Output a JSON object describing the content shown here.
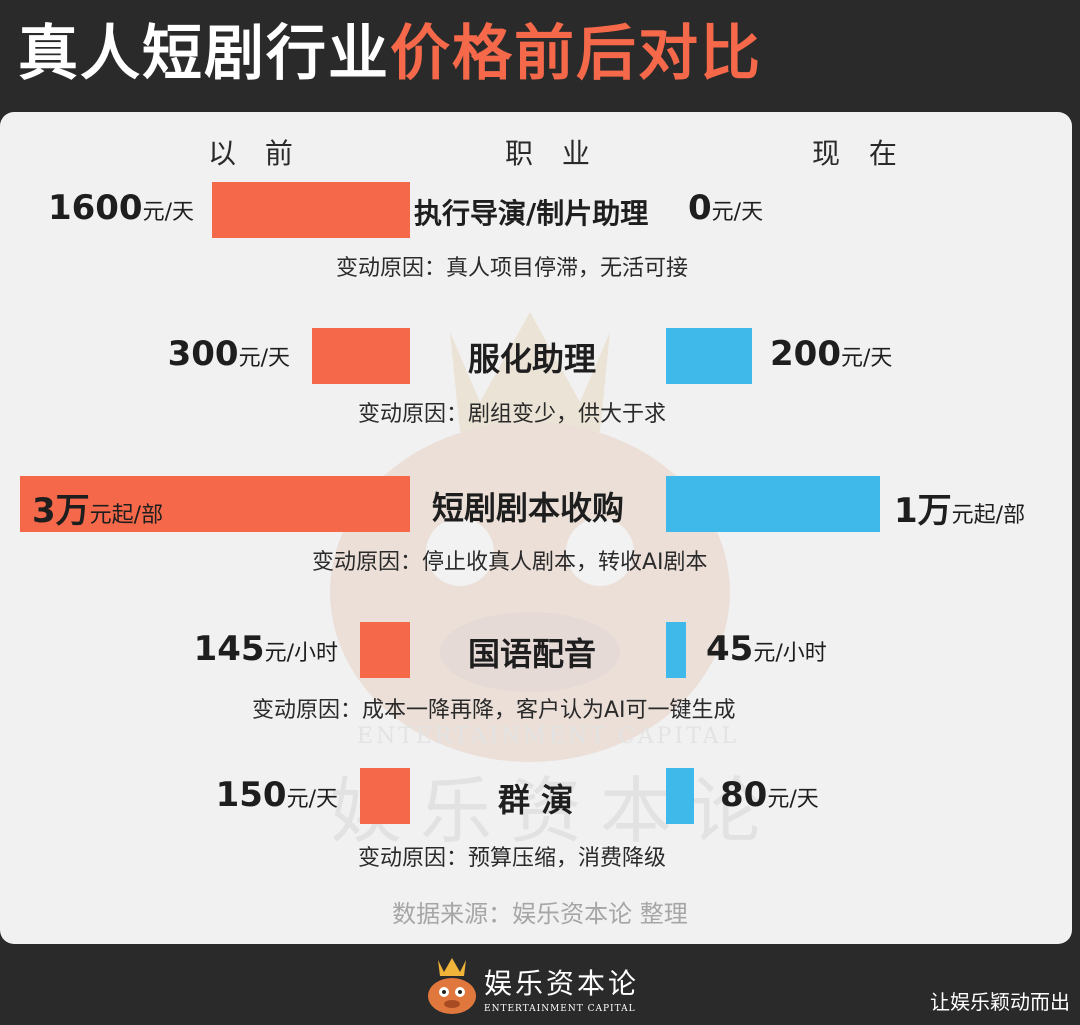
{
  "title": {
    "part1": "真人短剧行业",
    "part2": "价格前后对比"
  },
  "columns": {
    "before": "以 前",
    "job": "职 业",
    "after": "现 在"
  },
  "colors": {
    "before": "#f5694a",
    "after": "#3fb8ea",
    "title_accent": "#f5694a"
  },
  "chart_data": {
    "type": "bar",
    "categories": [
      "执行导演/制片助理",
      "服化助理",
      "短剧剧本收购",
      "国语配音",
      "群 演"
    ],
    "rows": [
      {
        "job": "执行导演/制片助理",
        "before_num": "1600",
        "before_unit": "元/天",
        "after_num": "0",
        "after_unit": "元/天",
        "before_value": 1600,
        "after_value": 0,
        "reason": "变动原因：真人项目停滞，无活可接"
      },
      {
        "job": "服化助理",
        "before_num": "300",
        "before_unit": "元/天",
        "after_num": "200",
        "after_unit": "元/天",
        "before_value": 300,
        "after_value": 200,
        "reason": "变动原因：剧组变少，供大于求"
      },
      {
        "job": "短剧剧本收购",
        "before_num": "3万",
        "before_unit": "元起/部",
        "after_num": "1万",
        "after_unit": "元起/部",
        "before_value": 30000,
        "after_value": 10000,
        "reason": "变动原因：停止收真人剧本，转收AI剧本"
      },
      {
        "job": "国语配音",
        "before_num": "145",
        "before_unit": "元/小时",
        "after_num": "45",
        "after_unit": "元/小时",
        "before_value": 145,
        "after_value": 45,
        "reason": "变动原因：成本一降再降，客户认为AI可一键生成"
      },
      {
        "job": "群 演",
        "before_num": "150",
        "before_unit": "元/天",
        "after_num": "80",
        "after_unit": "元/天",
        "before_value": 150,
        "after_value": 80,
        "reason": "变动原因：预算压缩，消费降级"
      }
    ]
  },
  "source": "数据来源：娱乐资本论 整理",
  "watermark": {
    "en": "ENTERTAINMENT CAPITAL",
    "zh": "娱乐资本论"
  },
  "footer": {
    "brand_zh": "娱乐资本论",
    "brand_en": "ENTERTAINMENT CAPITAL",
    "right_text": "让娱乐颖动而出",
    "logo_icon": "cartoon-mascot-crown-icon"
  }
}
